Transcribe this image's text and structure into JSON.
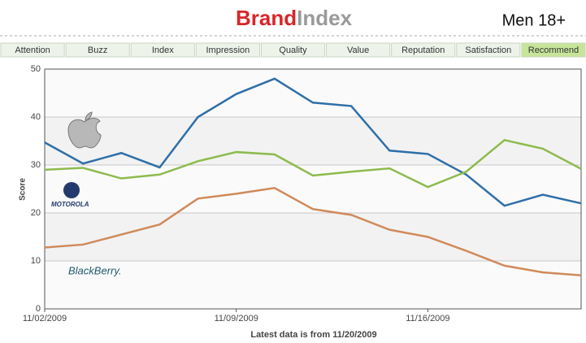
{
  "header": {
    "logo_brand": "Brand",
    "logo_index": "Index",
    "segment": "Men 18+"
  },
  "tabs": {
    "items": [
      "Attention",
      "Buzz",
      "Index",
      "Impression",
      "Quality",
      "Value",
      "Reputation",
      "Satisfaction",
      "Recommend"
    ],
    "active": 8
  },
  "chart_data": {
    "type": "line",
    "ylabel": "Score",
    "categories": [
      "11/02/2009",
      null,
      null,
      null,
      null,
      "11/09/2009",
      null,
      null,
      null,
      null,
      "11/16/2009",
      null,
      null,
      null,
      null
    ],
    "series": [
      {
        "color": "#2f6fa8",
        "values": [
          34.7,
          30.3,
          32.5,
          29.5,
          40,
          44.8,
          48,
          43,
          42.3,
          33,
          32.3,
          28,
          21.5,
          23.8,
          22
        ]
      },
      {
        "color": "#8dbb4e",
        "values": [
          29,
          29.4,
          27.2,
          28,
          30.8,
          32.7,
          32.2,
          27.8,
          28.6,
          29.3,
          25.4,
          28.6,
          35.2,
          33.4,
          29.2
        ]
      },
      {
        "color": "#d08a5a",
        "values": [
          12.8,
          13.4,
          15.5,
          17.6,
          23,
          24,
          25.2,
          20.8,
          19.6,
          16.5,
          15,
          12.1,
          9,
          7.6,
          7
        ]
      }
    ],
    "ylim": [
      0,
      50
    ],
    "yticks": [
      0,
      10,
      20,
      30,
      40,
      50
    ],
    "grid": true,
    "logos": [
      "MOTOROLA",
      "BlackBerry."
    ],
    "footnote": "Latest data is from 11/20/2009"
  }
}
